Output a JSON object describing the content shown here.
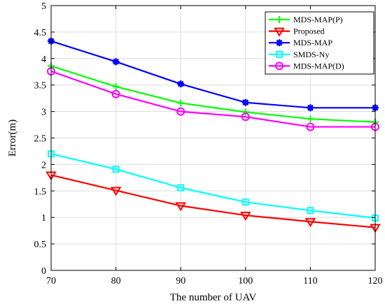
{
  "chart_data": {
    "type": "line",
    "xlabel": "The number of UAV",
    "ylabel": "Error(m)",
    "xlim": [
      70,
      120
    ],
    "ylim": [
      0,
      5
    ],
    "xticks": [
      70,
      80,
      90,
      100,
      110,
      120
    ],
    "yticks": [
      0,
      0.5,
      1,
      1.5,
      2,
      2.5,
      3,
      3.5,
      4,
      4.5,
      5
    ],
    "yticklabels": [
      "0",
      "0.5",
      "1",
      "1.5",
      "2",
      "2.5",
      "3",
      "3.5",
      "4",
      "4.5",
      "5"
    ],
    "grid": true,
    "legend_position": "top-right",
    "x": [
      70,
      80,
      90,
      100,
      110,
      120
    ],
    "series": [
      {
        "name": "MDS-MAP(P)",
        "color": "#00ff00",
        "marker": "plus",
        "values": [
          3.86,
          3.47,
          3.16,
          2.99,
          2.86,
          2.8
        ]
      },
      {
        "name": "Proposed",
        "color": "#ff0000",
        "marker": "triangle-down",
        "values": [
          1.8,
          1.51,
          1.22,
          1.04,
          0.92,
          0.81
        ]
      },
      {
        "name": "MDS-MAP",
        "color": "#0000ff",
        "marker": "star",
        "values": [
          4.33,
          3.94,
          3.52,
          3.17,
          3.07,
          3.07
        ]
      },
      {
        "name": "SMDS-Ny",
        "color": "#00ffff",
        "marker": "square",
        "values": [
          2.2,
          1.91,
          1.56,
          1.29,
          1.13,
          0.99
        ]
      },
      {
        "name": "MDS-MAP(D)",
        "color": "#ff00ff",
        "marker": "circle",
        "values": [
          3.76,
          3.33,
          3.0,
          2.9,
          2.71,
          2.71
        ]
      }
    ]
  }
}
